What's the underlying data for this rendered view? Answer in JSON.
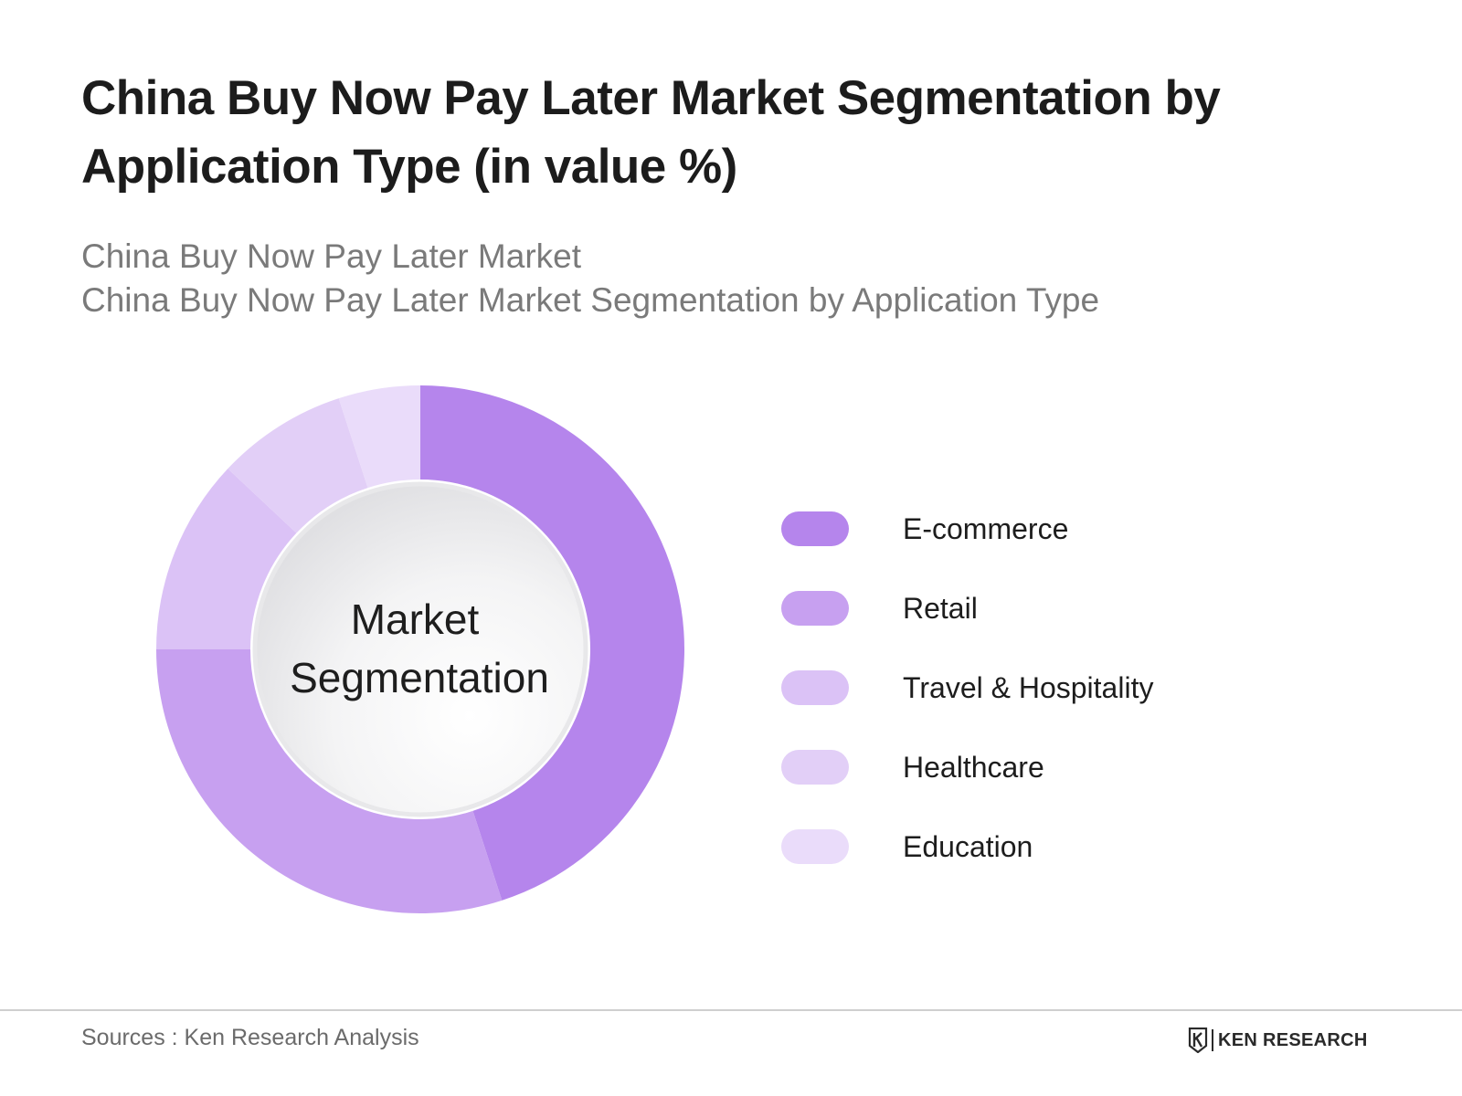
{
  "title": "China Buy Now Pay Later Market Segmentation by Application Type (in value %)",
  "subtitle_1": "China Buy Now Pay Later Market",
  "subtitle_2": "China Buy Now Pay Later Market Segmentation by Application Type",
  "chart_data": {
    "type": "pie",
    "variant": "donut",
    "center_label": [
      "Market",
      "Segmentation"
    ],
    "unit": "%",
    "categories": [
      "E-commerce",
      "Retail",
      "Travel & Hospitality",
      "Healthcare",
      "Education"
    ],
    "values": [
      45,
      30,
      12,
      8,
      5
    ],
    "colors": [
      "#b585ec",
      "#c7a0f0",
      "#dbc2f6",
      "#e2cff7",
      "#eadcfa"
    ],
    "legend_position": "right",
    "start_angle_deg": 0,
    "direction": "clockwise"
  },
  "legend": {
    "items": [
      {
        "label": "E-commerce",
        "color": "#b585ec"
      },
      {
        "label": "Retail",
        "color": "#c7a0f0"
      },
      {
        "label": "Travel & Hospitality",
        "color": "#dbc2f6"
      },
      {
        "label": "Healthcare",
        "color": "#e2cff7"
      },
      {
        "label": "Education",
        "color": "#eadcfa"
      }
    ]
  },
  "footer": {
    "source": "Sources : Ken Research Analysis",
    "brand": "KEN RESEARCH",
    "brand_icon": "ken-research-logo-icon"
  }
}
